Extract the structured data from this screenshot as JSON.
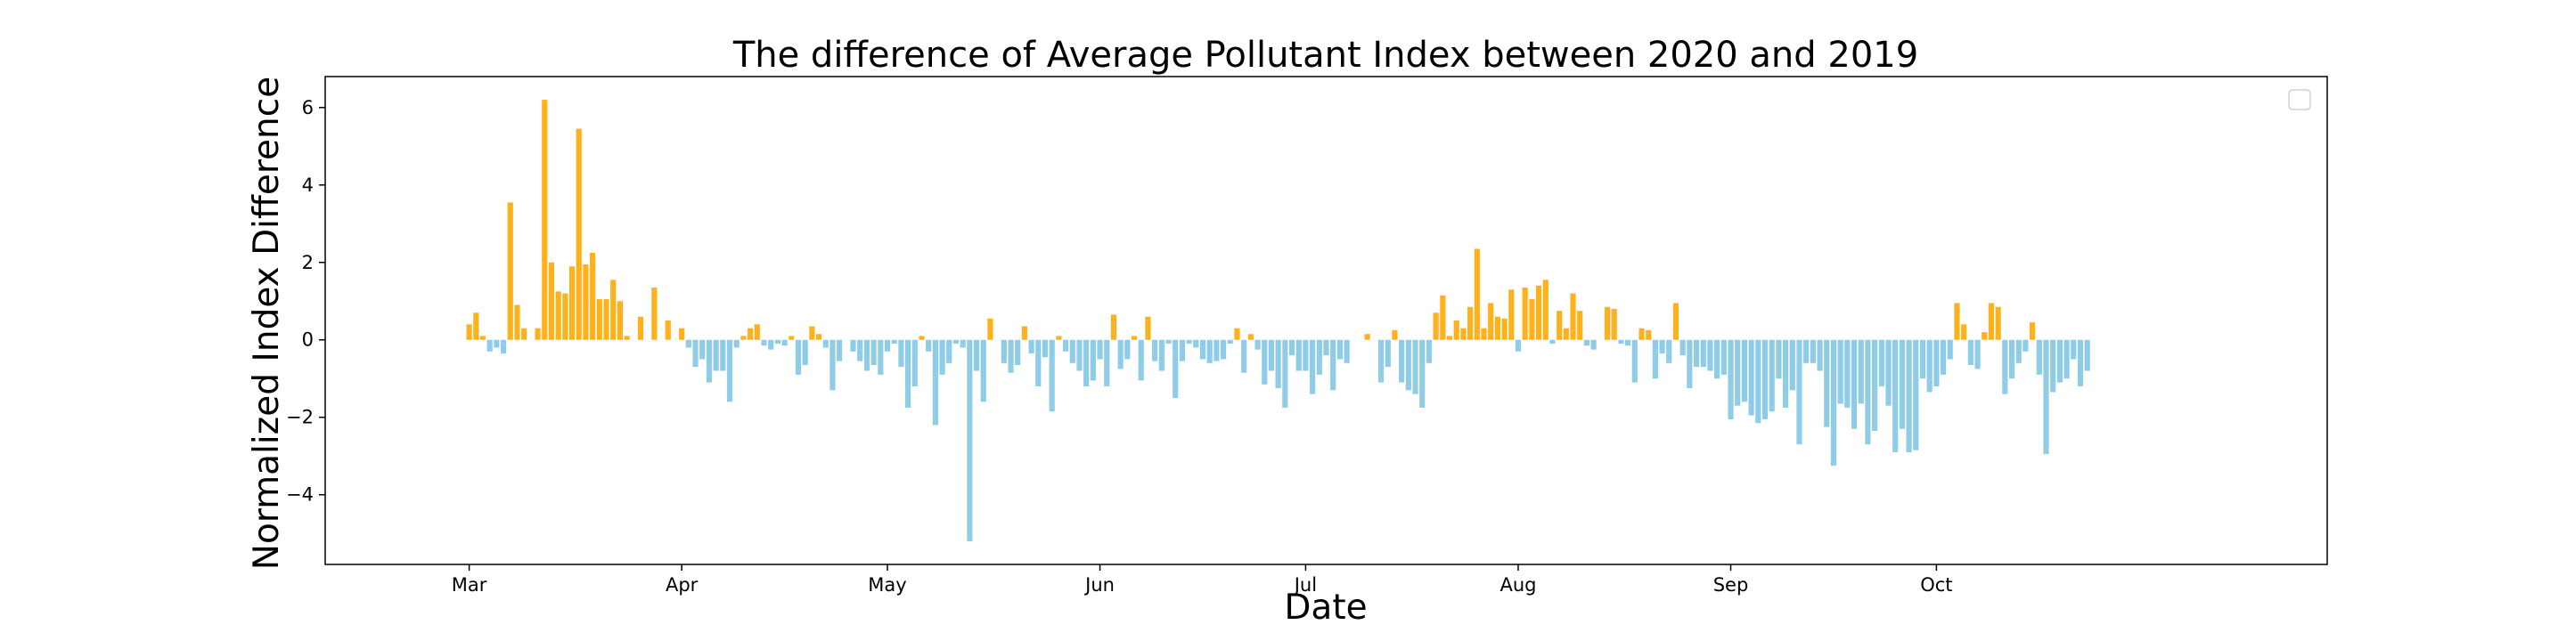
{
  "chart_data": {
    "type": "bar",
    "title": "The difference of Average Pollutant Index between 2020 and 2019",
    "xlabel": "Date",
    "ylabel": "Normalized Index Difference",
    "x_start": "2020-03-01",
    "x_end": "2020-10-31",
    "xlim": [
      "2020-02-09",
      "2020-11-27"
    ],
    "ylim": [
      -5.8,
      6.8
    ],
    "y_ticks": [
      -4,
      -2,
      0,
      2,
      4,
      6
    ],
    "x_ticks": [
      {
        "label": "Mar",
        "date": "2020-03-01"
      },
      {
        "label": "Apr",
        "date": "2020-04-01"
      },
      {
        "label": "May",
        "date": "2020-05-01"
      },
      {
        "label": "Jun",
        "date": "2020-06-01"
      },
      {
        "label": "Jul",
        "date": "2020-07-01"
      },
      {
        "label": "Aug",
        "date": "2020-08-01"
      },
      {
        "label": "Sep",
        "date": "2020-09-01"
      },
      {
        "label": "Oct",
        "date": "2020-10-01"
      }
    ],
    "grid": false,
    "legend": "top-right (empty)",
    "colors": {
      "positive": "#FFB11B",
      "negative": "#8ECCE8"
    },
    "values": [
      0.4,
      0.7,
      0.1,
      -0.3,
      -0.2,
      -0.35,
      3.55,
      0.9,
      0.3,
      0.0,
      0.3,
      6.2,
      2.0,
      1.25,
      1.2,
      1.9,
      5.45,
      1.95,
      2.25,
      1.05,
      1.05,
      1.55,
      1.0,
      0.1,
      0.0,
      0.6,
      0.0,
      1.35,
      0.0,
      0.5,
      0.0,
      0.3,
      -0.2,
      -0.7,
      -0.5,
      -1.1,
      -0.8,
      -0.8,
      -1.6,
      -0.2,
      0.1,
      0.3,
      0.4,
      -0.15,
      -0.25,
      -0.1,
      -0.15,
      0.1,
      -0.9,
      -0.65,
      0.35,
      0.15,
      -0.2,
      -1.3,
      -0.55,
      0.0,
      -0.3,
      -0.55,
      -0.8,
      -0.65,
      -0.9,
      -0.3,
      -0.1,
      -0.7,
      -1.75,
      -1.2,
      0.1,
      -0.3,
      -2.2,
      -0.9,
      -0.6,
      -0.1,
      -0.2,
      -5.2,
      -0.8,
      -1.6,
      0.55,
      0.0,
      -0.6,
      -0.85,
      -0.65,
      0.35,
      -0.35,
      -1.2,
      -0.45,
      -1.85,
      0.1,
      -0.3,
      -0.6,
      -0.8,
      -1.2,
      -1.05,
      -0.5,
      -1.2,
      0.65,
      -0.75,
      -0.5,
      0.1,
      -1.05,
      0.6,
      -0.55,
      -0.8,
      -0.1,
      -1.5,
      -0.55,
      -0.1,
      -0.2,
      -0.5,
      -0.6,
      -0.55,
      -0.5,
      -0.1,
      0.3,
      -0.85,
      0.15,
      -0.25,
      -1.15,
      -0.8,
      -1.25,
      -1.75,
      -0.4,
      -0.8,
      -0.8,
      -1.4,
      -0.9,
      -0.4,
      -1.3,
      -0.5,
      -0.6,
      0.0,
      0.0,
      0.15,
      0.0,
      -1.1,
      -0.7,
      0.25,
      -1.1,
      -1.3,
      -1.4,
      -1.75,
      -0.6,
      0.7,
      1.15,
      0.1,
      0.5,
      0.3,
      0.85,
      2.35,
      0.3,
      0.95,
      0.6,
      0.55,
      1.3,
      -0.3,
      1.35,
      1.05,
      1.4,
      1.55,
      -0.1,
      0.75,
      0.3,
      1.2,
      0.75,
      -0.15,
      -0.25,
      0.0,
      0.85,
      0.8,
      -0.1,
      -0.15,
      -1.1,
      0.3,
      0.25,
      -1.0,
      -0.35,
      -0.6,
      0.95,
      -0.4,
      -1.25,
      -0.7,
      -0.7,
      -0.8,
      -1.0,
      -0.9,
      -2.05,
      -1.7,
      -1.6,
      -1.95,
      -2.15,
      -2.05,
      -1.85,
      -1.0,
      -1.75,
      -1.3,
      -2.7,
      -0.6,
      -0.6,
      -0.8,
      -2.25,
      -3.25,
      -1.65,
      -1.75,
      -2.3,
      -1.65,
      -2.7,
      -2.35,
      -1.2,
      -1.7,
      -2.9,
      -2.3,
      -2.9,
      -2.85,
      -1.0,
      -1.35,
      -1.2,
      -0.9,
      -0.5,
      0.95,
      0.4,
      -0.65,
      -0.75,
      0.2,
      0.95,
      0.85,
      -1.4,
      -1.0,
      -0.6,
      -0.3,
      0.45,
      -0.9,
      -2.95,
      -1.35,
      -1.1,
      -1.0,
      -0.5,
      -1.2,
      -0.8
    ]
  }
}
